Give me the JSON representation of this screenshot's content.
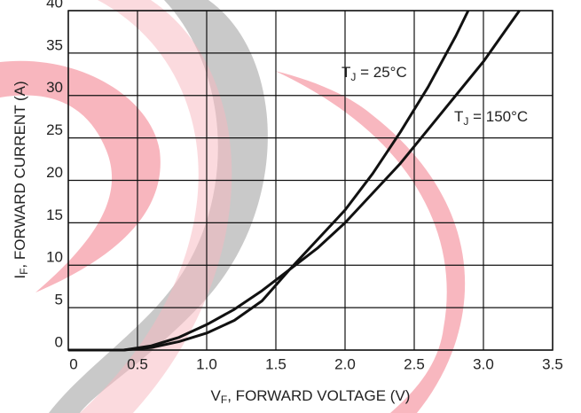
{
  "chart_data": {
    "type": "line",
    "xlabel": {
      "symbol": "V",
      "subscript": "F",
      "text": ", FORWARD VOLTAGE (V)"
    },
    "ylabel": {
      "symbol": "I",
      "subscript": "F",
      "text": ", FORWARD CURRENT (A)"
    },
    "xlim": [
      0,
      3.5
    ],
    "xticks": [
      0,
      0.5,
      {
        "value": 1,
        "label": "1.0"
      },
      1.5,
      {
        "value": 2,
        "label": "2.0"
      },
      2.5,
      {
        "value": 3,
        "label": "3.0"
      },
      3.5
    ],
    "ylim": [
      0,
      40
    ],
    "yticks": [
      0,
      5,
      10,
      15,
      20,
      25,
      30,
      35,
      40
    ],
    "grid": true,
    "series": [
      {
        "label": {
          "symbol": "T",
          "subscript": "J",
          "text": " = 25°C"
        },
        "color": "#111111",
        "x": [
          0,
          0.4,
          0.6,
          0.8,
          1.0,
          1.2,
          1.4,
          1.6,
          1.8,
          2.0,
          2.2,
          2.4,
          2.6,
          2.8,
          2.89
        ],
        "values": [
          0,
          0,
          0.3,
          1,
          2,
          3.5,
          5.8,
          9.5,
          13,
          16.5,
          20.8,
          25.7,
          31,
          37,
          40
        ]
      },
      {
        "label": {
          "symbol": "T",
          "subscript": "J",
          "text": " = 150°C"
        },
        "color": "#111111",
        "x": [
          0,
          0.4,
          0.6,
          0.8,
          1.0,
          1.2,
          1.4,
          1.6,
          1.8,
          2.0,
          2.2,
          2.4,
          2.6,
          2.8,
          3.0,
          3.26
        ],
        "values": [
          0,
          0,
          0.5,
          1.5,
          3,
          4.8,
          7,
          9.5,
          12,
          15,
          18.5,
          22,
          26,
          30,
          34,
          40
        ]
      }
    ]
  }
}
